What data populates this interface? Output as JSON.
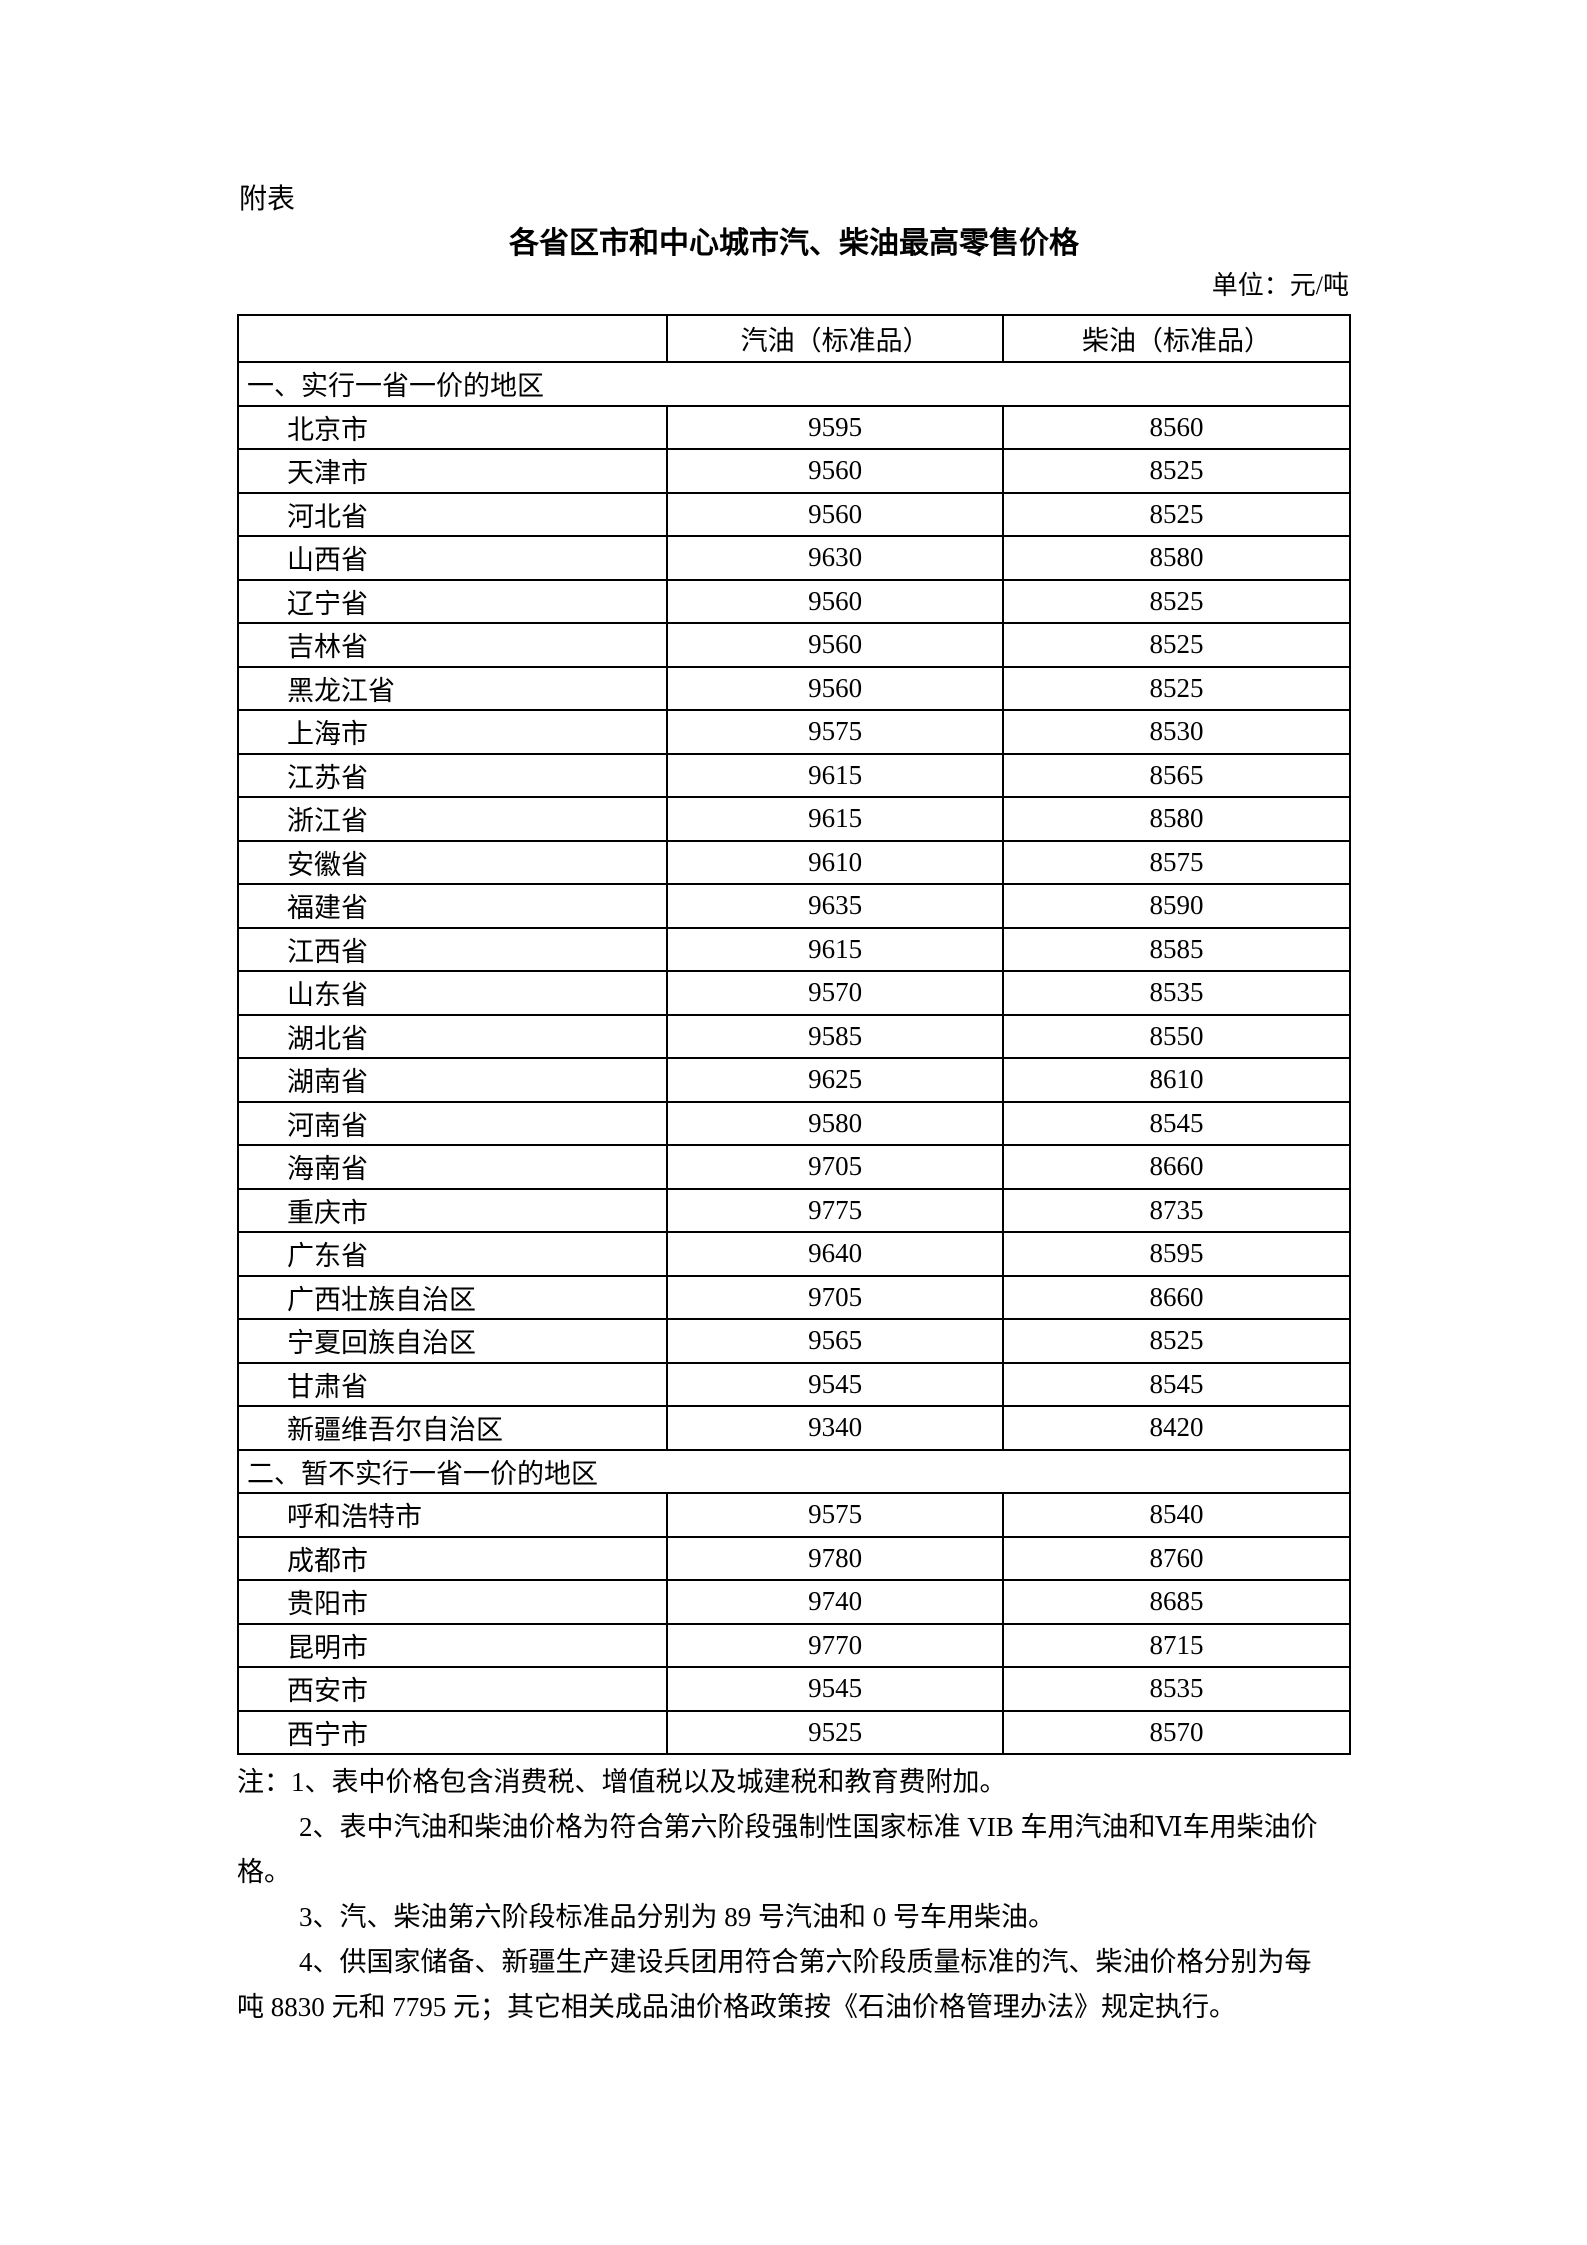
{
  "page": {
    "attachment_label": "附表",
    "title": "各省区市和中心城市汽、柴油最高零售价格",
    "unit_label": "单位：元/吨"
  },
  "table": {
    "header": {
      "region_col": "",
      "gasoline_col": "汽油（标准品）",
      "diesel_col": "柴油（标准品）"
    },
    "sections": [
      {
        "title": "一、实行一省一价的地区",
        "rows": [
          {
            "region": "北京市",
            "gasoline": "9595",
            "diesel": "8560"
          },
          {
            "region": "天津市",
            "gasoline": "9560",
            "diesel": "8525"
          },
          {
            "region": "河北省",
            "gasoline": "9560",
            "diesel": "8525"
          },
          {
            "region": "山西省",
            "gasoline": "9630",
            "diesel": "8580"
          },
          {
            "region": "辽宁省",
            "gasoline": "9560",
            "diesel": "8525"
          },
          {
            "region": "吉林省",
            "gasoline": "9560",
            "diesel": "8525"
          },
          {
            "region": "黑龙江省",
            "gasoline": "9560",
            "diesel": "8525"
          },
          {
            "region": "上海市",
            "gasoline": "9575",
            "diesel": "8530"
          },
          {
            "region": "江苏省",
            "gasoline": "9615",
            "diesel": "8565"
          },
          {
            "region": "浙江省",
            "gasoline": "9615",
            "diesel": "8580"
          },
          {
            "region": "安徽省",
            "gasoline": "9610",
            "diesel": "8575"
          },
          {
            "region": "福建省",
            "gasoline": "9635",
            "diesel": "8590"
          },
          {
            "region": "江西省",
            "gasoline": "9615",
            "diesel": "8585"
          },
          {
            "region": "山东省",
            "gasoline": "9570",
            "diesel": "8535"
          },
          {
            "region": "湖北省",
            "gasoline": "9585",
            "diesel": "8550"
          },
          {
            "region": "湖南省",
            "gasoline": "9625",
            "diesel": "8610"
          },
          {
            "region": "河南省",
            "gasoline": "9580",
            "diesel": "8545"
          },
          {
            "region": "海南省",
            "gasoline": "9705",
            "diesel": "8660"
          },
          {
            "region": "重庆市",
            "gasoline": "9775",
            "diesel": "8735"
          },
          {
            "region": "广东省",
            "gasoline": "9640",
            "diesel": "8595"
          },
          {
            "region": "广西壮族自治区",
            "gasoline": "9705",
            "diesel": "8660"
          },
          {
            "region": "宁夏回族自治区",
            "gasoline": "9565",
            "diesel": "8525"
          },
          {
            "region": "甘肃省",
            "gasoline": "9545",
            "diesel": "8545"
          },
          {
            "region": "新疆维吾尔自治区",
            "gasoline": "9340",
            "diesel": "8420"
          }
        ]
      },
      {
        "title": "二、暂不实行一省一价的地区",
        "rows": [
          {
            "region": "呼和浩特市",
            "gasoline": "9575",
            "diesel": "8540"
          },
          {
            "region": "成都市",
            "gasoline": "9780",
            "diesel": "8760"
          },
          {
            "region": "贵阳市",
            "gasoline": "9740",
            "diesel": "8685"
          },
          {
            "region": "昆明市",
            "gasoline": "9770",
            "diesel": "8715"
          },
          {
            "region": "西安市",
            "gasoline": "9545",
            "diesel": "8535"
          },
          {
            "region": "西宁市",
            "gasoline": "9525",
            "diesel": "8570"
          }
        ]
      }
    ]
  },
  "notes": {
    "lines": [
      {
        "text": "注：1、表中价格包含消费税、增值税以及城建税和教育费附加。",
        "indent": false
      },
      {
        "text": "2、表中汽油和柴油价格为符合第六阶段强制性国家标准 VIB 车用汽油和Ⅵ车用柴油价",
        "indent": true
      },
      {
        "text": "格。",
        "indent": false
      },
      {
        "text": "3、汽、柴油第六阶段标准品分别为 89 号汽油和 0 号车用柴油。",
        "indent": true
      },
      {
        "text": "4、供国家储备、新疆生产建设兵团用符合第六阶段质量标准的汽、柴油价格分别为每",
        "indent": true
      },
      {
        "text": "吨 8830 元和 7795 元；其它相关成品油价格政策按《石油价格管理办法》规定执行。",
        "indent": false
      }
    ]
  }
}
